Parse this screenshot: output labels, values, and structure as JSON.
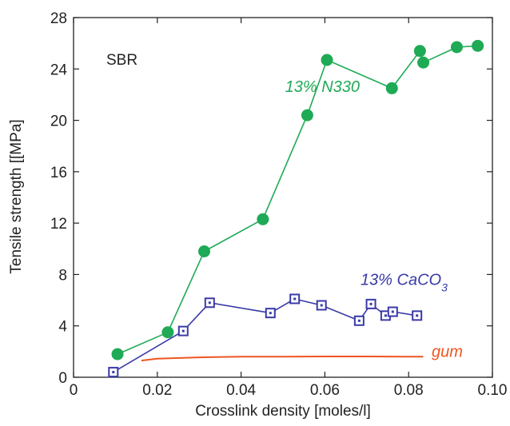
{
  "chart_data": {
    "type": "scatter",
    "title": "",
    "xlabel": "Crosslink density  [moles/l]",
    "ylabel": "Tensile strength [[MPa]",
    "xlim": [
      0.0,
      0.1
    ],
    "ylim": [
      0,
      28
    ],
    "xticks": [
      {
        "value": 0.0,
        "label": "0"
      },
      {
        "value": 0.02,
        "label": "0.02"
      },
      {
        "value": 0.04,
        "label": "0.04"
      },
      {
        "value": 0.06,
        "label": "0.06"
      },
      {
        "value": 0.08,
        "label": "0.08"
      },
      {
        "value": 0.1,
        "label": "0.10"
      }
    ],
    "yticks": [
      {
        "value": 0,
        "label": "0"
      },
      {
        "value": 4,
        "label": "4"
      },
      {
        "value": 8,
        "label": "8"
      },
      {
        "value": 12,
        "label": "12"
      },
      {
        "value": 16,
        "label": "16"
      },
      {
        "value": 20,
        "label": "20"
      },
      {
        "value": 24,
        "label": "24"
      },
      {
        "value": 28,
        "label": "28"
      }
    ],
    "grid": false,
    "legend": "none",
    "annotation_sbr": "SBR",
    "series": [
      {
        "name": "13% N330",
        "label_text": "13% N330",
        "color": "#1faa55",
        "marker": "filled-circle",
        "connected": true,
        "label_at": [
          0.0505,
          22.2
        ],
        "x": [
          0.0105,
          0.0225,
          0.0312,
          0.0452,
          0.0558,
          0.0605,
          0.076,
          0.0827,
          0.0835,
          0.0915,
          0.0965
        ],
        "y": [
          1.8,
          3.5,
          9.8,
          12.3,
          20.4,
          24.7,
          22.5,
          25.4,
          24.5,
          25.7,
          25.8
        ]
      },
      {
        "name": "13% CaCO3",
        "label_text": "13% CaCO",
        "label_subscript": "3",
        "color": "#3a3aa8",
        "marker": "open-square",
        "connected": true,
        "label_at": [
          0.0685,
          7.2
        ],
        "x": [
          0.0095,
          0.0262,
          0.0325,
          0.047,
          0.0528,
          0.0592,
          0.0682,
          0.071,
          0.0745,
          0.0762,
          0.082
        ],
        "y": [
          0.4,
          3.6,
          5.8,
          5.0,
          6.1,
          5.6,
          4.4,
          5.7,
          4.8,
          5.1,
          4.8
        ]
      },
      {
        "name": "gum",
        "label_text": "gum",
        "color": "#ee5522",
        "marker": "none",
        "connected": true,
        "label_at": [
          0.0855,
          1.6
        ],
        "x": [
          0.0162,
          0.02,
          0.03,
          0.04,
          0.05,
          0.06,
          0.07,
          0.08,
          0.0835
        ],
        "y": [
          1.3,
          1.45,
          1.55,
          1.6,
          1.6,
          1.62,
          1.62,
          1.6,
          1.6
        ]
      }
    ]
  }
}
